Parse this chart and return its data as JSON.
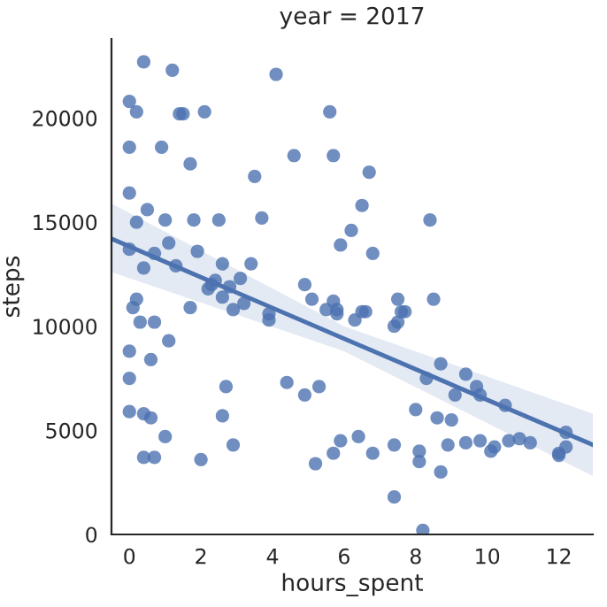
{
  "chart_data": {
    "type": "scatter",
    "title": "year = 2017",
    "xlabel": "hours_spent",
    "ylabel": "steps",
    "xlim": [
      -0.5,
      12.95
    ],
    "ylim": [
      0,
      23800
    ],
    "xticks": [
      0,
      2,
      4,
      6,
      8,
      10,
      12
    ],
    "yticks": [
      0,
      5000,
      10000,
      15000,
      20000
    ],
    "grid": false,
    "legend": false,
    "series": [
      {
        "marker": "circle",
        "color": "#4c72b0",
        "x": [
          0.4,
          1.2,
          4.1,
          0.0,
          0.2,
          1.4,
          1.5,
          2.1,
          5.6,
          5.7,
          0.0,
          0.9,
          1.7,
          4.6,
          3.5,
          6.7,
          0.0,
          0.5,
          6.5,
          0.2,
          1.0,
          1.8,
          2.5,
          3.7,
          8.4,
          6.2,
          5.9,
          0.0,
          0.7,
          1.1,
          1.9,
          6.8,
          0.4,
          1.3,
          2.6,
          3.4,
          3.1,
          2.4,
          2.2,
          2.8,
          4.9,
          0.1,
          0.2,
          0.3,
          0.7,
          0.0,
          0.6,
          1.1,
          0.0,
          0.0,
          0.4,
          0.6,
          1.0,
          0.4,
          0.7,
          2.0,
          1.7,
          2.3,
          2.6,
          2.9,
          3.2,
          2.7,
          2.6,
          2.9,
          3.9,
          3.9,
          4.4,
          4.9,
          5.3,
          5.1,
          5.2,
          5.7,
          5.9,
          5.5,
          5.7,
          5.8,
          5.8,
          6.3,
          6.5,
          6.6,
          7.5,
          8.5,
          7.4,
          7.5,
          7.6,
          7.7,
          8.7,
          8.3,
          9.4,
          9.7,
          9.8,
          9.1,
          10.5,
          8.0,
          8.6,
          9.0,
          12.2,
          6.4,
          6.8,
          7.4,
          8.1,
          8.1,
          8.9,
          9.4,
          9.8,
          10.2,
          10.1,
          10.6,
          10.9,
          11.2,
          12.0,
          12.0,
          12.2,
          8.7,
          7.4,
          8.2
        ],
        "values": [
          22700,
          22300,
          22100,
          20800,
          20300,
          20200,
          20200,
          20300,
          20300,
          18200,
          18600,
          18600,
          17800,
          18200,
          17200,
          17400,
          16400,
          15600,
          15800,
          15000,
          15100,
          15100,
          15100,
          15200,
          15100,
          14600,
          13900,
          13700,
          13500,
          14000,
          13600,
          13500,
          12800,
          12900,
          13000,
          13000,
          12300,
          12200,
          11800,
          11900,
          12000,
          10900,
          11300,
          10200,
          10200,
          8800,
          8400,
          9300,
          7500,
          5900,
          5800,
          5600,
          4700,
          3700,
          3700,
          3600,
          10900,
          12000,
          11400,
          10800,
          11100,
          7100,
          5700,
          4300,
          10600,
          10300,
          7300,
          6700,
          7100,
          11300,
          3400,
          3900,
          4500,
          10800,
          11200,
          10800,
          10600,
          10300,
          10700,
          10700,
          11300,
          11300,
          10000,
          10200,
          10700,
          10700,
          8200,
          7500,
          7700,
          7100,
          6700,
          6700,
          6200,
          6000,
          5600,
          5500,
          4900,
          4700,
          3900,
          4300,
          4000,
          3500,
          4300,
          4400,
          4500,
          4200,
          4000,
          4500,
          4600,
          4400,
          3900,
          3800,
          4200,
          3000,
          1800,
          200
        ]
      },
      {
        "type": "line",
        "color": "#4c72b0",
        "x": [
          -0.5,
          6,
          12.95
        ],
        "values": [
          14200,
          9400,
          4300
        ],
        "lower": [
          12600,
          8800,
          2800
        ],
        "upper": [
          15900,
          10000,
          5800
        ]
      }
    ]
  }
}
